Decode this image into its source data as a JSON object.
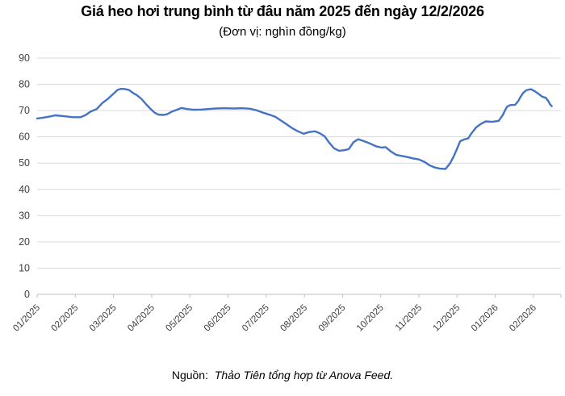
{
  "header": {
    "title": "Giá heo hơi trung bình từ đâu năm 2025 đến ngày 12/2/2026",
    "subtitle": "(Đơn vị: nghìn đồng/kg)"
  },
  "footer": {
    "source_label": "Nguồn:",
    "source_text": "Thảo Tiên tổng hợp từ Anova Feed."
  },
  "chart_data": {
    "type": "line",
    "title": "Giá heo hơi trung bình từ đâu năm 2025 đến ngày 12/2/2026",
    "subtitle": "(Đơn vị: nghìn đồng/kg)",
    "unit": "nghìn đồng/kg",
    "series_name": "Giá heo hơi trung bình",
    "x_tick_labels": [
      "01/2025",
      "02/2025",
      "03/2025",
      "04/2025",
      "05/2025",
      "06/2025",
      "07/2025",
      "08/2025",
      "09/2025",
      "10/2025",
      "11/2025",
      "12/2025",
      "01/2026",
      "02/2026"
    ],
    "y_ticks": [
      0,
      10,
      20,
      30,
      40,
      50,
      60,
      70,
      80,
      90
    ],
    "ylim": [
      0,
      90
    ],
    "grid": true,
    "legend_position": "none",
    "line_color": "#4472C4",
    "grid_color": "#D9D9D9",
    "axis_color": "#BFBFBF",
    "tick_label_color": "#404040",
    "points": [
      [
        0.0,
        67.0
      ],
      [
        0.15,
        67.3
      ],
      [
        0.35,
        67.8
      ],
      [
        0.47,
        68.2
      ],
      [
        0.68,
        67.9
      ],
      [
        0.93,
        67.5
      ],
      [
        1.14,
        67.5
      ],
      [
        1.27,
        68.3
      ],
      [
        1.4,
        69.6
      ],
      [
        1.56,
        70.6
      ],
      [
        1.71,
        72.9
      ],
      [
        1.84,
        74.3
      ],
      [
        1.99,
        76.3
      ],
      [
        2.11,
        77.9
      ],
      [
        2.2,
        78.3
      ],
      [
        2.3,
        78.2
      ],
      [
        2.41,
        77.8
      ],
      [
        2.52,
        76.6
      ],
      [
        2.62,
        75.8
      ],
      [
        2.73,
        74.5
      ],
      [
        2.85,
        72.5
      ],
      [
        2.96,
        70.8
      ],
      [
        3.07,
        69.3
      ],
      [
        3.17,
        68.5
      ],
      [
        3.3,
        68.3
      ],
      [
        3.4,
        68.6
      ],
      [
        3.53,
        69.6
      ],
      [
        3.68,
        70.4
      ],
      [
        3.78,
        71.0
      ],
      [
        3.93,
        70.6
      ],
      [
        4.1,
        70.3
      ],
      [
        4.31,
        70.4
      ],
      [
        4.48,
        70.6
      ],
      [
        4.69,
        70.8
      ],
      [
        4.9,
        70.9
      ],
      [
        5.16,
        70.8
      ],
      [
        5.37,
        70.9
      ],
      [
        5.58,
        70.7
      ],
      [
        5.75,
        70.1
      ],
      [
        5.92,
        69.2
      ],
      [
        6.09,
        68.4
      ],
      [
        6.24,
        67.6
      ],
      [
        6.38,
        66.3
      ],
      [
        6.53,
        64.8
      ],
      [
        6.68,
        63.3
      ],
      [
        6.83,
        62.1
      ],
      [
        6.98,
        61.2
      ],
      [
        7.12,
        61.8
      ],
      [
        7.27,
        62.1
      ],
      [
        7.4,
        61.4
      ],
      [
        7.53,
        60.2
      ],
      [
        7.65,
        57.8
      ],
      [
        7.78,
        55.6
      ],
      [
        7.91,
        54.7
      ],
      [
        8.03,
        54.9
      ],
      [
        8.16,
        55.3
      ],
      [
        8.29,
        58.0
      ],
      [
        8.41,
        59.1
      ],
      [
        8.54,
        58.5
      ],
      [
        8.71,
        57.5
      ],
      [
        8.88,
        56.4
      ],
      [
        9.03,
        55.9
      ],
      [
        9.13,
        56.1
      ],
      [
        9.26,
        54.5
      ],
      [
        9.41,
        53.1
      ],
      [
        9.56,
        52.7
      ],
      [
        9.7,
        52.3
      ],
      [
        9.85,
        51.8
      ],
      [
        10.0,
        51.4
      ],
      [
        10.15,
        50.4
      ],
      [
        10.27,
        49.2
      ],
      [
        10.4,
        48.4
      ],
      [
        10.55,
        47.9
      ],
      [
        10.7,
        47.8
      ],
      [
        10.82,
        50.0
      ],
      [
        10.91,
        52.5
      ],
      [
        11.0,
        55.5
      ],
      [
        11.08,
        58.3
      ],
      [
        11.18,
        59.0
      ],
      [
        11.29,
        59.4
      ],
      [
        11.37,
        61.2
      ],
      [
        11.5,
        63.6
      ],
      [
        11.63,
        65.0
      ],
      [
        11.75,
        65.9
      ],
      [
        11.92,
        65.7
      ],
      [
        12.09,
        66.1
      ],
      [
        12.14,
        67.1
      ],
      [
        12.2,
        68.4
      ],
      [
        12.27,
        70.5
      ],
      [
        12.31,
        71.5
      ],
      [
        12.39,
        72.1
      ],
      [
        12.52,
        72.2
      ],
      [
        12.6,
        73.6
      ],
      [
        12.66,
        75.2
      ],
      [
        12.73,
        76.7
      ],
      [
        12.81,
        77.7
      ],
      [
        12.88,
        78.0
      ],
      [
        12.94,
        78.1
      ],
      [
        13.04,
        77.3
      ],
      [
        13.15,
        76.2
      ],
      [
        13.23,
        75.3
      ],
      [
        13.32,
        74.9
      ],
      [
        13.38,
        73.8
      ],
      [
        13.44,
        72.3
      ],
      [
        13.48,
        71.7
      ]
    ]
  }
}
